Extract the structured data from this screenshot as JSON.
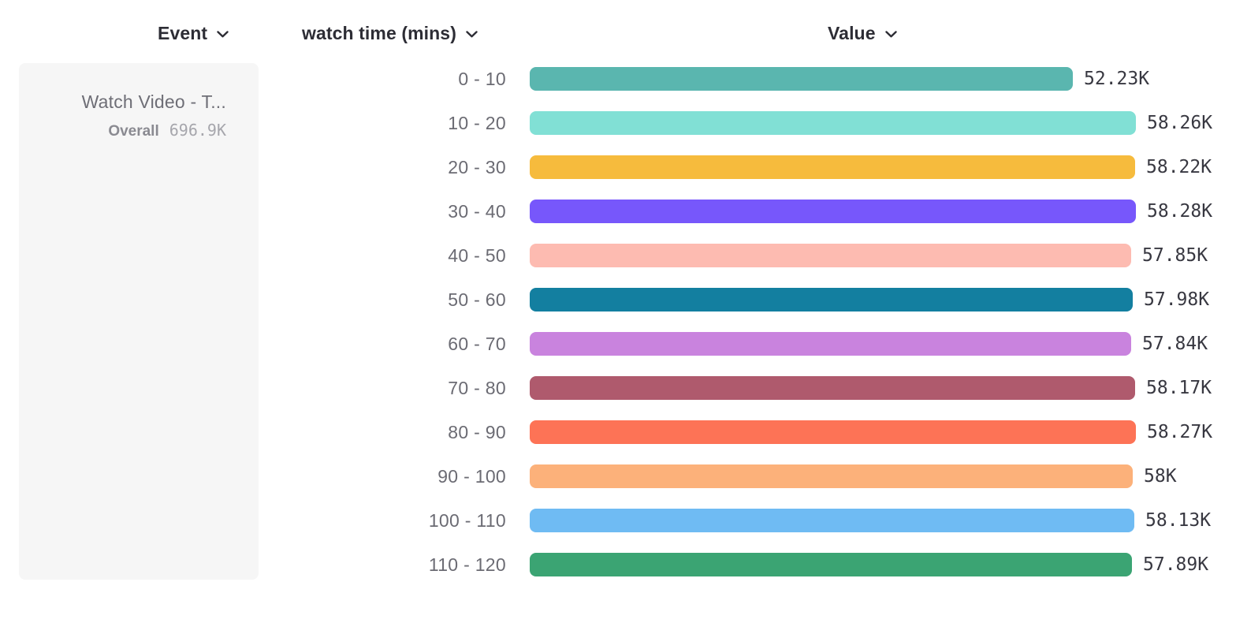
{
  "header": {
    "columns": [
      {
        "id": "event",
        "label": "Event"
      },
      {
        "id": "breakdown",
        "label": "watch time (mins)"
      },
      {
        "id": "value",
        "label": "Value"
      }
    ]
  },
  "event_card": {
    "title": "Watch Video - T...",
    "overall_label": "Overall",
    "overall_value": "696.9K"
  },
  "icons": {
    "chevron_down": "chevron-down"
  },
  "chart_data": {
    "type": "bar",
    "orientation": "horizontal",
    "title": "",
    "xlabel": "Value",
    "ylabel": "watch time (mins)",
    "categories": [
      "0 - 10",
      "10 - 20",
      "20 - 30",
      "30 - 40",
      "40 - 50",
      "50 - 60",
      "60 - 70",
      "70 - 80",
      "80 - 90",
      "90 - 100",
      "100 - 110",
      "110 - 120"
    ],
    "values": [
      52230,
      58260,
      58220,
      58280,
      57850,
      57980,
      57840,
      58170,
      58270,
      58000,
      58130,
      57890
    ],
    "value_labels": [
      "52.23K",
      "58.26K",
      "58.22K",
      "58.28K",
      "57.85K",
      "57.98K",
      "57.84K",
      "58.17K",
      "58.27K",
      "58K",
      "58.13K",
      "57.89K"
    ],
    "colors": [
      "#5ab6af",
      "#81e0d5",
      "#f6bb3d",
      "#7757fb",
      "#fdbbb1",
      "#137fa0",
      "#c983de",
      "#af5a6d",
      "#fd7356",
      "#fcb17a",
      "#6fbbf3",
      "#3ba473"
    ],
    "xlim": [
      0,
      58280
    ],
    "grid": false,
    "legend": false,
    "value_labels_position": "end-of-bar"
  }
}
